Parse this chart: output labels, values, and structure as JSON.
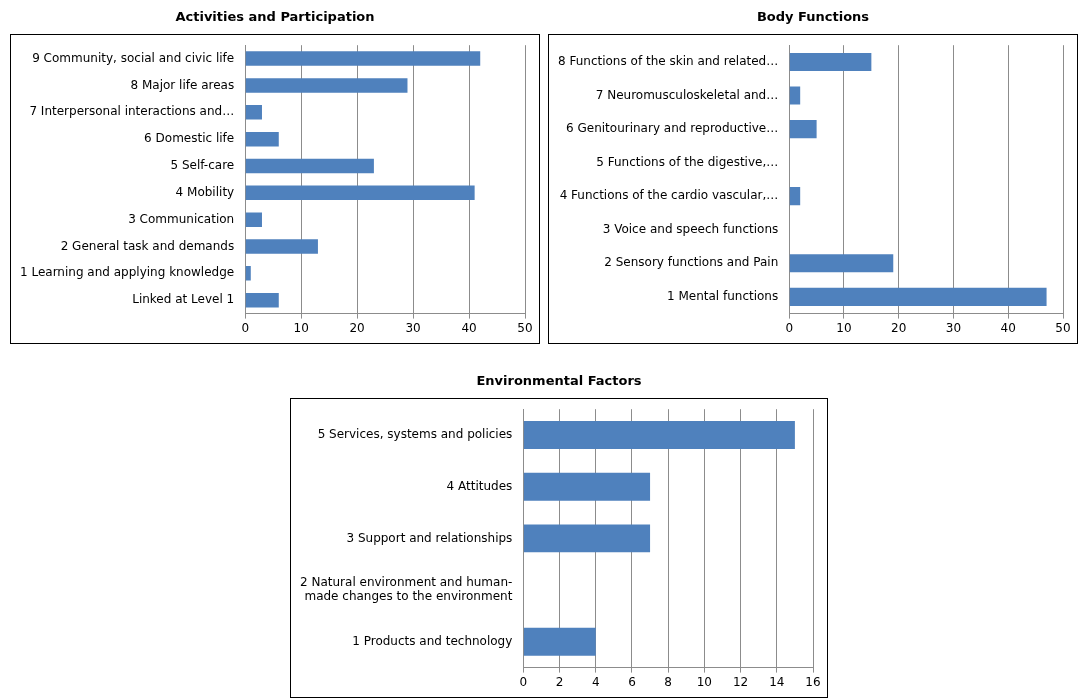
{
  "chart_data": [
    {
      "type": "bar",
      "orientation": "horizontal",
      "title": "Activities and Participation",
      "categories": [
        "9 Community, social and civic life",
        "8 Major life areas",
        "7 Interpersonal interactions and…",
        "6 Domestic life",
        "5 Self-care",
        "4 Mobility",
        "3 Communication",
        "2 General task and demands",
        "1 Learning and applying knowledge",
        "Linked at Level 1"
      ],
      "values": [
        42,
        29,
        3,
        6,
        23,
        41,
        3,
        13,
        1,
        6
      ],
      "color": "#4f81bd",
      "xlim": [
        0,
        50
      ],
      "xticks": [
        0,
        10,
        20,
        30,
        40,
        50
      ],
      "grid": "x",
      "legend": false
    },
    {
      "type": "bar",
      "orientation": "horizontal",
      "title": "Body Functions",
      "categories": [
        "8 Functions of the skin and related…",
        "7 Neuromusculoskeletal and…",
        "6 Genitourinary and reproductive…",
        "5 Functions of the digestive,…",
        "4 Functions of the cardio vascular,…",
        "3 Voice and speech functions",
        "2 Sensory functions and Pain",
        "1 Mental functions"
      ],
      "values": [
        15,
        2,
        5,
        0,
        2,
        0,
        19,
        47
      ],
      "color": "#4f81bd",
      "xlim": [
        0,
        50
      ],
      "xticks": [
        0,
        10,
        20,
        30,
        40,
        50
      ],
      "grid": "x",
      "legend": false
    },
    {
      "type": "bar",
      "orientation": "horizontal",
      "title": "Environmental Factors",
      "categories": [
        "5 Services, systems and policies",
        "4 Attitudes",
        "3 Support and relationships",
        "2 Natural environment and human-made changes to the environment",
        "1 Products and technology"
      ],
      "values": [
        15,
        7,
        7,
        0,
        4
      ],
      "color": "#4f81bd",
      "xlim": [
        0,
        16
      ],
      "xticks": [
        0,
        2,
        4,
        6,
        8,
        10,
        12,
        14,
        16
      ],
      "grid": "x",
      "legend": false
    }
  ]
}
